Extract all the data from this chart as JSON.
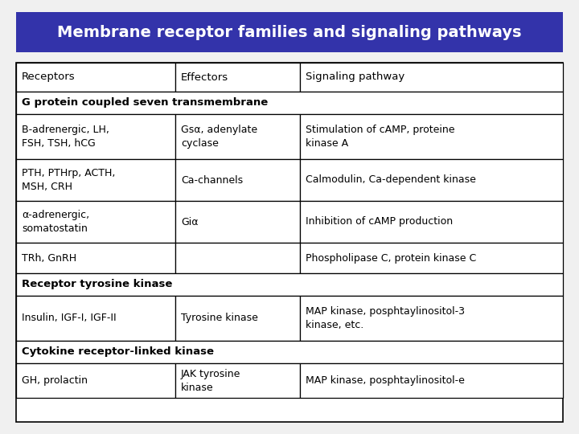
{
  "title": "Membrane receptor families and signaling pathways",
  "title_bg": "#3333aa",
  "title_color": "#ffffff",
  "header": [
    "Receptors",
    "Effectors",
    "Signaling pathway"
  ],
  "section1_label": "G protein coupled seven transmembrane",
  "section2_label": "Receptor tyrosine kinase",
  "section3_label": "Cytokine receptor-linked kinase",
  "rows": [
    [
      "B-adrenergic, LH,\nFSH, TSH, hCG",
      "Gsα, adenylate\ncyclase",
      "Stimulation of cAMP, proteine\nkinase A"
    ],
    [
      "PTH, PTHrp, ACTH,\nMSH, CRH",
      "Ca-channels",
      "Calmodulin, Ca-dependent kinase"
    ],
    [
      "α-adrenergic,\nsomatostatin",
      "Giα",
      "Inhibition of cAMP production"
    ],
    [
      "TRh, GnRH",
      "",
      "Phospholipase C, protein kinase C"
    ],
    [
      "Insulin, IGF-I, IGF-II",
      "Tyrosine kinase",
      "MAP kinase, posphtaylinositol-3\nkinase, etc."
    ],
    [
      "GH, prolactin",
      "JAK tyrosine\nkinase",
      "MAP kinase, posphtaylinositol-e"
    ]
  ],
  "bg_color": "#f0f0f0",
  "table_bg": "#ffffff",
  "border_color": "#000000",
  "font_size_title": 14,
  "font_size_header": 9.5,
  "font_size_section": 9.5,
  "font_size_data": 9
}
